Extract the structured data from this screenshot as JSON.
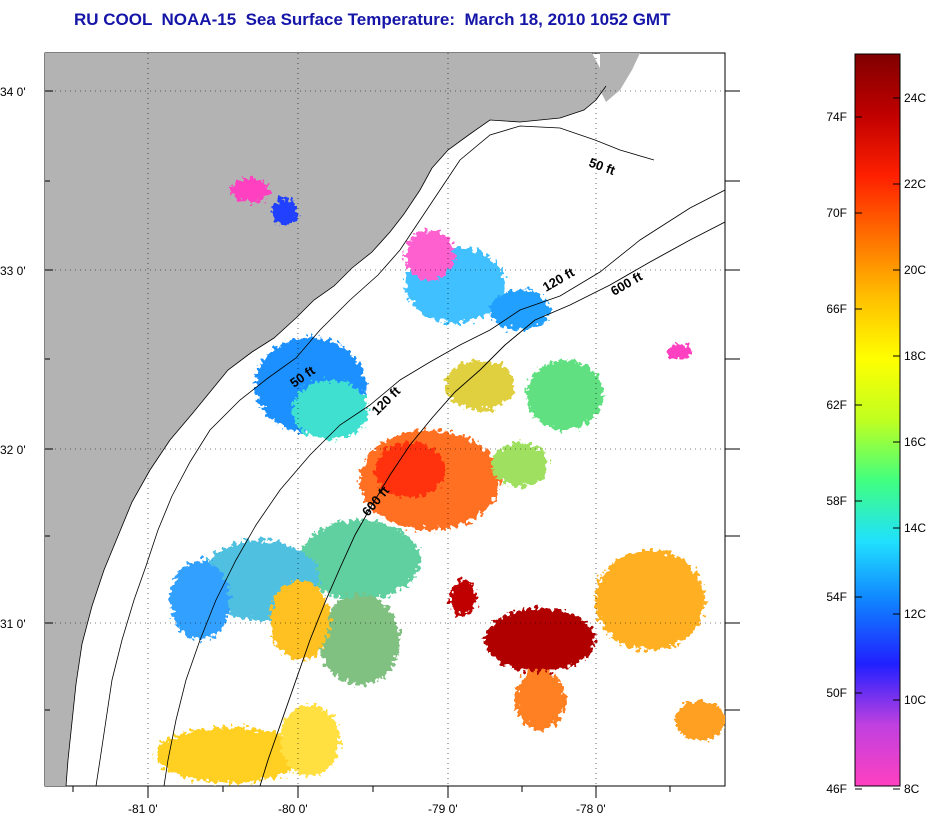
{
  "title": "RU COOL  NOAA-15  Sea Surface Temperature:  March 18, 2010 1052 GMT",
  "map": {
    "lat_labels": [
      "34 0'",
      "33 0'",
      "32 0'",
      "31 0'"
    ],
    "lon_labels": [
      "-81 0'",
      "-80 0'",
      "-79 0'",
      "-78 0'"
    ],
    "contour_labels": [
      "50 ft",
      "120 ft",
      "600 ft",
      "50 ft",
      "120 ft",
      "600 ft"
    ],
    "land_color": "#b3b3b3",
    "ocean_no_data_color": "#ffffff"
  },
  "colorbar": {
    "fahrenheit_labels": [
      "74F",
      "70F",
      "66F",
      "62F",
      "58F",
      "54F",
      "50F",
      "46F"
    ],
    "celsius_labels": [
      "24C",
      "22C",
      "20C",
      "18C",
      "16C",
      "14C",
      "12C",
      "10C",
      "8C"
    ],
    "colors": [
      "#ff40c0",
      "#c040e0",
      "#2020ff",
      "#1080ff",
      "#20e0ff",
      "#40ff80",
      "#c0ff20",
      "#ffff00",
      "#ffc000",
      "#ff7000",
      "#ff2000",
      "#c00000",
      "#800000"
    ]
  }
}
